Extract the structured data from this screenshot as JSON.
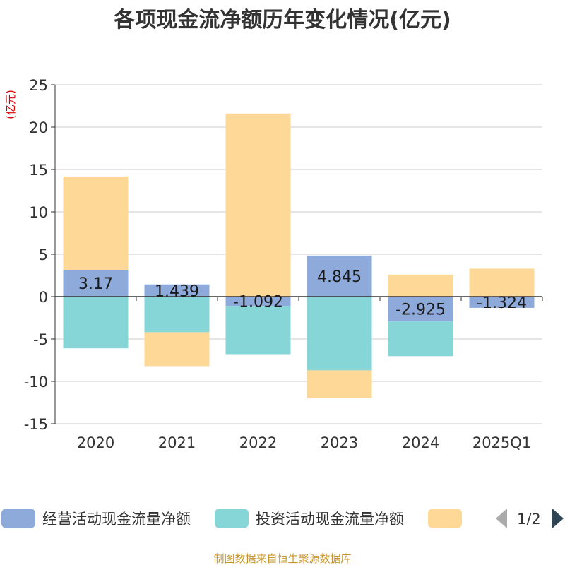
{
  "chart_data": {
    "type": "bar",
    "stacked": true,
    "title": "各项现金流净额历年变化情况(亿元)",
    "ylabel": "(亿元)",
    "ylim": [
      -15,
      25
    ],
    "yticks": [
      -15,
      -10,
      -5,
      0,
      5,
      10,
      15,
      20,
      25
    ],
    "grid": true,
    "categories": [
      "2020",
      "2021",
      "2022",
      "2023",
      "2024",
      "2025Q1"
    ],
    "series": [
      {
        "name": "经营活动现金流量净额",
        "color": "#8eaadb",
        "values": [
          3.17,
          1.439,
          -1.092,
          4.845,
          -2.925,
          -1.324
        ]
      },
      {
        "name": "投资活动现金流量净额",
        "color": "#86d6d8",
        "values": [
          -6.1,
          -4.2,
          -5.7,
          -8.7,
          -4.1,
          0
        ]
      },
      {
        "name": "",
        "color": "#fed896",
        "values": [
          11.0,
          -4.0,
          21.6,
          -3.3,
          2.6,
          3.3
        ]
      }
    ],
    "data_labels": [
      "3.17",
      "1.439",
      "-1.092",
      "4.845",
      "-2.925",
      "-1.324"
    ],
    "legend_position": "bottom"
  },
  "legend": {
    "page_indicator": "1/2",
    "prev_icon": "triangle-left-icon",
    "next_icon": "triangle-right-icon"
  },
  "source_text": "制图数据来自恒生聚源数据库"
}
